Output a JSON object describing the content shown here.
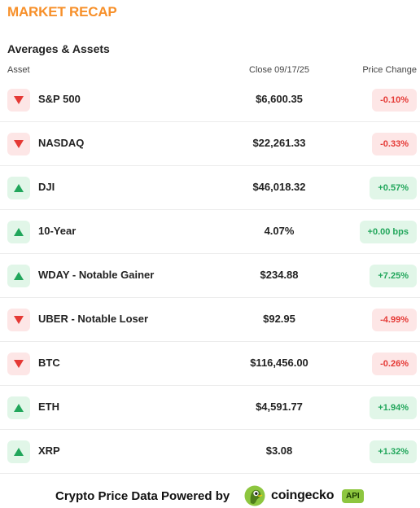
{
  "title": "MARKET RECAP",
  "subtitle": "Averages & Assets",
  "columns": {
    "asset": "Asset",
    "close": "Close 09/17/25",
    "change": "Price Change"
  },
  "rows": [
    {
      "direction": "down",
      "name": "S&P 500",
      "close": "$6,600.35",
      "change": "-0.10%"
    },
    {
      "direction": "down",
      "name": "NASDAQ",
      "close": "$22,261.33",
      "change": "-0.33%"
    },
    {
      "direction": "up",
      "name": "DJI",
      "close": "$46,018.32",
      "change": "+0.57%"
    },
    {
      "direction": "up",
      "name": "10-Year",
      "close": "4.07%",
      "change": "+0.00 bps"
    },
    {
      "direction": "up",
      "name": "WDAY - Notable Gainer",
      "close": "$234.88",
      "change": "+7.25%"
    },
    {
      "direction": "down",
      "name": "UBER - Notable Loser",
      "close": "$92.95",
      "change": "-4.99%"
    },
    {
      "direction": "down",
      "name": "BTC",
      "close": "$116,456.00",
      "change": "-0.26%"
    },
    {
      "direction": "up",
      "name": "ETH",
      "close": "$4,591.77",
      "change": "+1.94%"
    },
    {
      "direction": "up",
      "name": "XRP",
      "close": "$3.08",
      "change": "+1.32%"
    }
  ],
  "footer": {
    "powered_by": "Crypto Price Data Powered by",
    "brand": "coingecko",
    "api_badge": "API",
    "logo_icon": "coingecko-gecko-icon"
  },
  "colors": {
    "accent": "#f7902a",
    "up": "#21a65b",
    "up_bg": "#e1f6e8",
    "down": "#e53935",
    "down_bg": "#fde6e6",
    "api_badge": "#8dc63f"
  },
  "icons": {
    "up": "triangle-up-icon",
    "down": "triangle-down-icon"
  }
}
